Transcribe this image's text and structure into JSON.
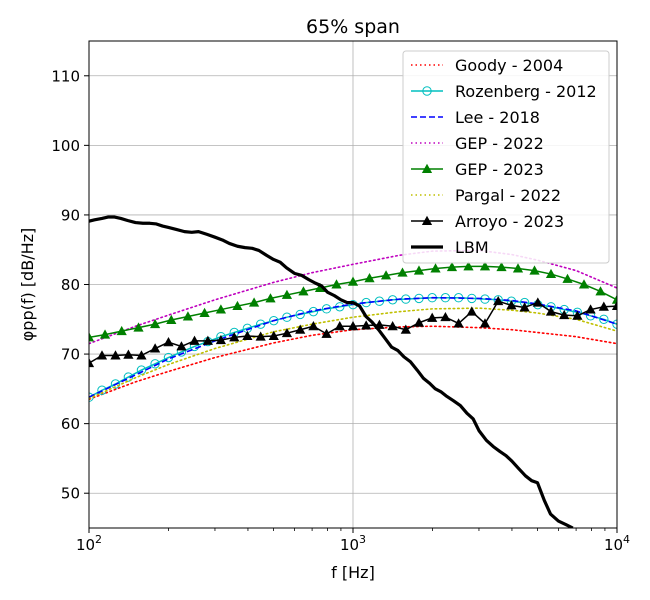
{
  "chart_data": {
    "type": "line",
    "title": "65% span",
    "xlabel": "f [Hz]",
    "ylabel": "φpp(f) [dB/Hz]",
    "xscale": "log",
    "xlim": [
      100,
      10000
    ],
    "ylim": [
      45,
      115
    ],
    "x_ticks": [
      {
        "value": 100,
        "base": "10",
        "exp": "2"
      },
      {
        "value": 1000,
        "base": "10",
        "exp": "3"
      },
      {
        "value": 10000,
        "base": "10",
        "exp": "4"
      }
    ],
    "y_ticks": [
      50,
      60,
      70,
      80,
      90,
      100,
      110
    ],
    "grid": true,
    "legend_position": "top-right",
    "series": [
      {
        "name": "Goody - 2004",
        "color": "#ff0000",
        "style": "dotted",
        "marker": "none",
        "width": 1.6,
        "x": [
          100,
          150,
          200,
          300,
          500,
          700,
          1000,
          1500,
          2000,
          3000,
          4000,
          5000,
          7000,
          10000
        ],
        "y": [
          63.5,
          66.0,
          67.5,
          69.5,
          71.6,
          72.7,
          73.5,
          73.9,
          74.0,
          73.8,
          73.5,
          73.1,
          72.5,
          71.5
        ]
      },
      {
        "name": "Rozenberg - 2012",
        "color": "#00bfbf",
        "style": "solid",
        "marker": "circle",
        "width": 1.5,
        "x": [
          100,
          112,
          126,
          141,
          158,
          178,
          200,
          224,
          251,
          282,
          316,
          355,
          398,
          447,
          501,
          562,
          631,
          708,
          794,
          891,
          1000,
          1122,
          1259,
          1413,
          1585,
          1778,
          1995,
          2239,
          2512,
          2818,
          3162,
          3548,
          3981,
          4467,
          5012,
          5623,
          6310,
          7079,
          7943,
          8913,
          10000
        ],
        "y": [
          63.8,
          64.8,
          65.7,
          66.7,
          67.7,
          68.6,
          69.5,
          70.3,
          71.1,
          71.8,
          72.5,
          73.1,
          73.7,
          74.3,
          74.8,
          75.3,
          75.7,
          76.1,
          76.5,
          76.8,
          77.1,
          77.4,
          77.6,
          77.8,
          77.9,
          78.0,
          78.1,
          78.1,
          78.1,
          78.0,
          77.9,
          77.8,
          77.6,
          77.4,
          77.1,
          76.8,
          76.4,
          76.0,
          75.5,
          75.0,
          74.3
        ]
      },
      {
        "name": "Lee - 2018",
        "color": "#0000ff",
        "style": "dashed",
        "marker": "none",
        "width": 1.6,
        "x": [
          100,
          150,
          200,
          300,
          500,
          700,
          1000,
          1500,
          2000,
          3000,
          4000,
          5000,
          7000,
          10000
        ],
        "y": [
          63.8,
          67.0,
          69.3,
          71.9,
          74.8,
          76.2,
          77.2,
          77.9,
          78.1,
          78.0,
          77.7,
          77.2,
          76.2,
          74.3
        ]
      },
      {
        "name": "GEP - 2022",
        "color": "#bf00bf",
        "style": "dotted",
        "marker": "none",
        "width": 1.6,
        "x": [
          100,
          150,
          200,
          300,
          500,
          700,
          1000,
          1500,
          2000,
          3000,
          4000,
          5000,
          7000,
          10000
        ],
        "y": [
          71.5,
          74.0,
          75.6,
          77.8,
          80.3,
          81.7,
          82.9,
          84.2,
          84.8,
          84.9,
          84.3,
          83.5,
          82.0,
          79.5
        ]
      },
      {
        "name": "GEP - 2023",
        "color": "#008000",
        "style": "solid",
        "marker": "triangle",
        "width": 1.5,
        "x": [
          100,
          115,
          133,
          154,
          178,
          205,
          237,
          274,
          316,
          365,
          422,
          487,
          562,
          649,
          750,
          866,
          1000,
          1155,
          1334,
          1540,
          1778,
          2054,
          2371,
          2738,
          3162,
          3652,
          4217,
          4870,
          5623,
          6494,
          7499,
          8660,
          10000
        ],
        "y": [
          72.4,
          72.8,
          73.3,
          73.8,
          74.3,
          74.9,
          75.4,
          75.9,
          76.4,
          76.9,
          77.4,
          78.0,
          78.5,
          79.0,
          79.5,
          80.0,
          80.4,
          80.9,
          81.3,
          81.7,
          82.0,
          82.3,
          82.5,
          82.6,
          82.6,
          82.5,
          82.3,
          82.0,
          81.5,
          80.8,
          80.0,
          79.0,
          77.8
        ]
      },
      {
        "name": "Pargal - 2022",
        "color": "#bfbf00",
        "style": "dotted",
        "marker": "none",
        "width": 1.6,
        "x": [
          100,
          150,
          200,
          300,
          500,
          700,
          1000,
          1500,
          2000,
          3000,
          4000,
          5000,
          7000,
          10000
        ],
        "y": [
          63.6,
          66.6,
          68.5,
          70.8,
          73.2,
          74.3,
          75.3,
          76.1,
          76.5,
          76.6,
          76.3,
          75.9,
          75.0,
          73.3
        ]
      },
      {
        "name": "Arroyo - 2023",
        "color": "#000000",
        "style": "solid",
        "marker": "triangle",
        "width": 1.5,
        "x": [
          100,
          112,
          126,
          141,
          158,
          178,
          200,
          224,
          251,
          282,
          316,
          355,
          398,
          447,
          501,
          562,
          631,
          708,
          794,
          891,
          1000,
          1122,
          1259,
          1413,
          1585,
          1778,
          1995,
          2239,
          2512,
          2818,
          3162,
          3548,
          3981,
          4467,
          5012,
          5623,
          6310,
          7079,
          7943,
          8913,
          10000
        ],
        "y": [
          68.7,
          69.8,
          69.8,
          69.9,
          69.8,
          70.8,
          71.7,
          71.1,
          71.9,
          71.9,
          72.0,
          72.4,
          72.6,
          72.5,
          72.6,
          73.0,
          73.5,
          74.0,
          72.9,
          74.0,
          74.0,
          74.1,
          74.2,
          74.0,
          73.5,
          74.5,
          75.2,
          75.3,
          74.4,
          76.1,
          74.4,
          77.6,
          77.0,
          76.7,
          77.4,
          76.1,
          75.6,
          75.5,
          76.4,
          76.8,
          76.9
        ]
      },
      {
        "name": "LBM",
        "color": "#000000",
        "style": "solid",
        "marker": "none",
        "width": 3.2,
        "x": [
          100,
          105,
          112,
          118,
          125,
          132,
          140,
          150,
          160,
          170,
          180,
          190,
          200,
          215,
          230,
          245,
          260,
          280,
          300,
          320,
          340,
          365,
          390,
          415,
          440,
          470,
          500,
          530,
          560,
          600,
          640,
          680,
          720,
          760,
          800,
          850,
          900,
          950,
          1000,
          1060,
          1120,
          1180,
          1250,
          1320,
          1400,
          1480,
          1560,
          1650,
          1750,
          1850,
          1950,
          2050,
          2150,
          2250,
          2400,
          2550,
          2700,
          2850,
          3000,
          3200,
          3400,
          3600,
          3800,
          4000,
          4250,
          4500,
          4750,
          5000,
          5300,
          5600,
          6000,
          6400,
          6800
        ],
        "y": [
          89.1,
          89.3,
          89.5,
          89.7,
          89.7,
          89.5,
          89.2,
          88.9,
          88.8,
          88.8,
          88.7,
          88.4,
          88.2,
          87.9,
          87.6,
          87.5,
          87.6,
          87.2,
          86.8,
          86.4,
          85.9,
          85.5,
          85.3,
          85.2,
          84.9,
          84.2,
          83.6,
          83.2,
          82.4,
          81.6,
          81.3,
          80.7,
          80.2,
          79.8,
          78.9,
          78.4,
          77.8,
          77.4,
          77.4,
          76.9,
          75.4,
          74.6,
          73.5,
          72.3,
          71.0,
          70.5,
          69.6,
          68.9,
          67.7,
          66.5,
          65.8,
          65.0,
          64.6,
          64.0,
          63.3,
          62.6,
          61.5,
          60.7,
          59.0,
          57.6,
          56.7,
          56.0,
          55.4,
          54.6,
          53.5,
          52.5,
          51.8,
          51.5,
          49.0,
          47.0,
          46.0,
          45.5,
          45.0
        ]
      }
    ]
  }
}
